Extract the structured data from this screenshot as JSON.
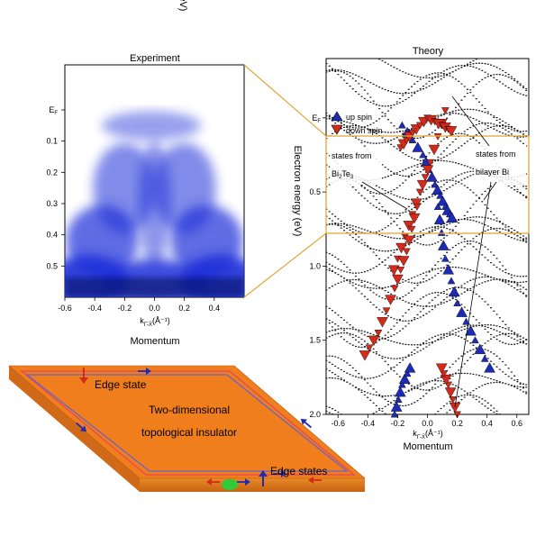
{
  "chart_data": [
    {
      "type": "heatmap",
      "title": "Experiment",
      "xlabel_prefix": "k",
      "xlabel_sub": "Γ̄-X̄",
      "xlabel_unit": "(Å⁻¹)",
      "xlabel_bottom": "Momentum",
      "ylabel": "Electron energy (eV)",
      "xlim": [
        -0.6,
        0.6
      ],
      "ylim": [
        0,
        0.6
      ],
      "x_ticks": [
        -0.6,
        -0.4,
        -0.2,
        0.0,
        0.2,
        0.4
      ],
      "y_ticks": [
        "E_F",
        "0.1",
        "0.2",
        "0.3",
        "0.4",
        "0.5"
      ],
      "y_tick_values": [
        0,
        0.1,
        0.2,
        0.3,
        0.4,
        0.5
      ],
      "intensity_color": "#1a2fd8"
    },
    {
      "type": "scatter",
      "title": "Theory",
      "xlabel_prefix": "k",
      "xlabel_sub": "Γ̄-X̄",
      "xlabel_unit": "(Å⁻¹)",
      "xlabel_bottom": "Momentum",
      "ylabel": "Electron energy (eV)",
      "xlim": [
        -0.68,
        0.68
      ],
      "ylim": [
        -0.4,
        2.0
      ],
      "x_ticks": [
        -0.6,
        -0.4,
        -0.2,
        0.0,
        0.2,
        0.4,
        0.6
      ],
      "y_ticks": [
        "E_F",
        "0.5",
        "1.0",
        "1.5",
        "2.0"
      ],
      "y_tick_values": [
        0,
        0.5,
        1.0,
        1.5,
        2.0
      ],
      "legend": [
        {
          "label": "up spin",
          "color": "#1d2bb5",
          "marker": "triangle-up"
        },
        {
          "label": "down spin",
          "color": "#d42a1a",
          "marker": "triangle-down"
        }
      ],
      "annotations": [
        {
          "line1": "states from",
          "line2": "Bi",
          "sub": "2",
          "line2b": "Te",
          "sub2": "3"
        },
        {
          "line1": "states from",
          "line2": "bilayer Bi"
        }
      ],
      "spin_bands": [
        {
          "spin": "up",
          "points": [
            [
              -0.17,
              0.05
            ],
            [
              -0.03,
              0.25
            ],
            [
              0.05,
              0.45
            ],
            [
              0.12,
              0.6
            ],
            [
              0.18,
              0.7
            ]
          ]
        },
        {
          "spin": "down",
          "points": [
            [
              0.12,
              -0.05
            ],
            [
              0.02,
              0.3
            ],
            [
              -0.05,
              0.5
            ],
            [
              -0.15,
              0.8
            ],
            [
              -0.25,
              1.1
            ]
          ]
        },
        {
          "spin": "down",
          "points": [
            [
              -0.18,
              0.2
            ],
            [
              -0.1,
              0.1
            ],
            [
              0.0,
              0.0
            ],
            [
              0.1,
              0.05
            ],
            [
              0.18,
              0.1
            ]
          ]
        },
        {
          "spin": "up",
          "points": [
            [
              0.07,
              0.6
            ],
            [
              0.12,
              0.95
            ],
            [
              0.2,
              1.25
            ],
            [
              0.32,
              1.5
            ],
            [
              0.45,
              1.75
            ]
          ]
        },
        {
          "spin": "down",
          "points": [
            [
              -0.07,
              0.6
            ],
            [
              -0.14,
              0.9
            ],
            [
              -0.22,
              1.15
            ],
            [
              -0.33,
              1.45
            ],
            [
              -0.45,
              1.65
            ]
          ]
        },
        {
          "spin": "up",
          "points": [
            [
              -0.22,
              2.0
            ],
            [
              -0.17,
              1.8
            ],
            [
              -0.1,
              1.65
            ]
          ]
        },
        {
          "spin": "down",
          "points": [
            [
              0.2,
              2.0
            ],
            [
              0.14,
              1.8
            ],
            [
              0.08,
              1.65
            ]
          ]
        }
      ]
    }
  ],
  "zoom_guide_color": "#e2a83a",
  "diagram": {
    "label_main_1": "Two-dimensional",
    "label_main_2": "topological insulator",
    "label_edge_state": "Edge state",
    "label_edge_states": "Edge states",
    "colors": {
      "top": "#f07e1c",
      "side": "#e07018",
      "up": "#1d2bb5",
      "down": "#d42a1a",
      "dot": "#2fcc3a"
    }
  }
}
